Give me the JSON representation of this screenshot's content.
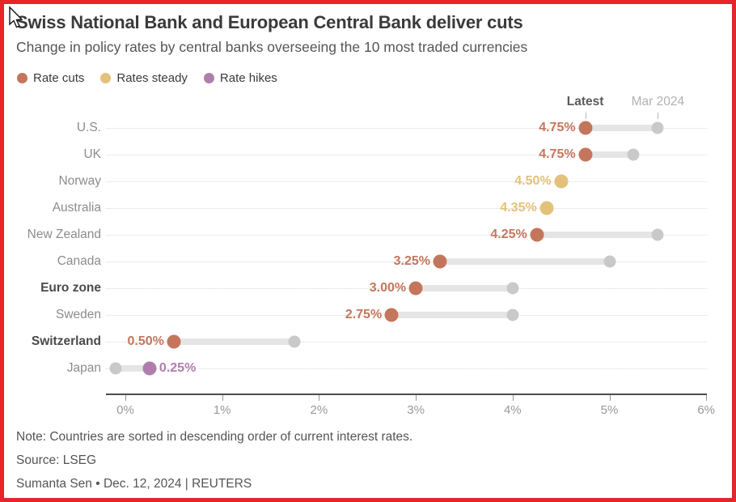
{
  "header": {
    "title": "Swiss National Bank and European Central Bank deliver cuts",
    "subtitle": "Change in policy rates by central banks overseeing the 10 most traded currencies"
  },
  "legend": [
    {
      "name": "rate-cuts",
      "label": "Rate cuts",
      "color": "#C4765C"
    },
    {
      "name": "rates-steady",
      "label": "Rates steady",
      "color": "#E3C17B"
    },
    {
      "name": "rate-hikes",
      "label": "Rate hikes",
      "color": "#AE7FAC"
    }
  ],
  "chart_data": {
    "type": "dumbbell",
    "title": "Swiss National Bank and European Central Bank deliver cuts",
    "subtitle": "Change in policy rates by central banks overseeing the 10 most traded currencies",
    "column_headers": {
      "latest": "Latest",
      "previous": "Mar 2024"
    },
    "xlabel": "",
    "ylabel": "",
    "xlim": [
      0,
      6
    ],
    "x_ticks": [
      {
        "value": 0,
        "label": "0%"
      },
      {
        "value": 1,
        "label": "1%"
      },
      {
        "value": 2,
        "label": "2%"
      },
      {
        "value": 3,
        "label": "3%"
      },
      {
        "value": 4,
        "label": "4%"
      },
      {
        "value": 5,
        "label": "5%"
      },
      {
        "value": 6,
        "label": "6%"
      }
    ],
    "rows": [
      {
        "country": "U.S.",
        "latest": 4.75,
        "latest_label": "4.75%",
        "mar2024": 5.5,
        "change": "cut",
        "bold": false,
        "label_side": "left"
      },
      {
        "country": "UK",
        "latest": 4.75,
        "latest_label": "4.75%",
        "mar2024": 5.25,
        "change": "cut",
        "bold": false,
        "label_side": "left"
      },
      {
        "country": "Norway",
        "latest": 4.5,
        "latest_label": "4.50%",
        "mar2024": 4.5,
        "change": "steady",
        "bold": false,
        "label_side": "left"
      },
      {
        "country": "Australia",
        "latest": 4.35,
        "latest_label": "4.35%",
        "mar2024": 4.35,
        "change": "steady",
        "bold": false,
        "label_side": "left"
      },
      {
        "country": "New Zealand",
        "latest": 4.25,
        "latest_label": "4.25%",
        "mar2024": 5.5,
        "change": "cut",
        "bold": false,
        "label_side": "left"
      },
      {
        "country": "Canada",
        "latest": 3.25,
        "latest_label": "3.25%",
        "mar2024": 5.0,
        "change": "cut",
        "bold": false,
        "label_side": "left"
      },
      {
        "country": "Euro zone",
        "latest": 3.0,
        "latest_label": "3.00%",
        "mar2024": 4.0,
        "change": "cut",
        "bold": true,
        "label_side": "left"
      },
      {
        "country": "Sweden",
        "latest": 2.75,
        "latest_label": "2.75%",
        "mar2024": 4.0,
        "change": "cut",
        "bold": false,
        "label_side": "left"
      },
      {
        "country": "Switzerland",
        "latest": 0.5,
        "latest_label": "0.50%",
        "mar2024": 1.75,
        "change": "cut",
        "bold": true,
        "label_side": "left"
      },
      {
        "country": "Japan",
        "latest": 0.25,
        "latest_label": "0.25%",
        "mar2024": -0.1,
        "change": "hike",
        "bold": false,
        "label_side": "right"
      }
    ],
    "legend_entries": [
      "Rate cuts",
      "Rates steady",
      "Rate hikes"
    ],
    "legend_position": "top-left",
    "grid": "dotted-horizontal"
  },
  "colors": {
    "cut": "#C4765C",
    "steady": "#E3C17B",
    "hike": "#AE7FAC",
    "mar_dot": "#C9C9C9",
    "frame_border": "#E5252A"
  },
  "footer": {
    "note": "Note: Countries are sorted in descending order of current interest rates.",
    "source": "Source: LSEG",
    "byline": "Sumanta Sen • Dec. 12, 2024 | REUTERS"
  }
}
